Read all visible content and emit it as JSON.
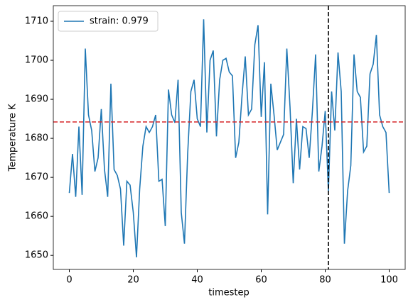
{
  "chart_data": {
    "type": "line",
    "x_label": "timestep",
    "y_label": "Temperature K",
    "x": [
      0,
      1,
      2,
      3,
      4,
      5,
      6,
      7,
      8,
      9,
      10,
      11,
      12,
      13,
      14,
      15,
      16,
      17,
      18,
      19,
      20,
      21,
      22,
      23,
      24,
      25,
      26,
      27,
      28,
      29,
      30,
      31,
      32,
      33,
      34,
      35,
      36,
      37,
      38,
      39,
      40,
      41,
      42,
      43,
      44,
      45,
      46,
      47,
      48,
      49,
      50,
      51,
      52,
      53,
      54,
      55,
      56,
      57,
      58,
      59,
      60,
      61,
      62,
      63,
      64,
      65,
      66,
      67,
      68,
      69,
      70,
      71,
      72,
      73,
      74,
      75,
      76,
      77,
      78,
      79,
      80,
      81,
      82,
      83,
      84,
      85,
      86,
      87,
      88,
      89,
      90,
      91,
      92,
      93,
      94,
      95,
      96,
      97,
      98,
      99,
      100
    ],
    "series": [
      {
        "name": "strain: 0.979",
        "color": "#1f77b4",
        "values": [
          1666,
          1676,
          1665,
          1683,
          1665.5,
          1703,
          1686,
          1682,
          1671.5,
          1675,
          1687.5,
          1672,
          1665,
          1694,
          1672,
          1670.5,
          1667,
          1652.5,
          1669,
          1668,
          1661,
          1649.5,
          1667,
          1678,
          1683,
          1681.5,
          1683,
          1686,
          1669,
          1669.5,
          1657.5,
          1692.5,
          1686,
          1684,
          1695,
          1661,
          1653,
          1676,
          1692,
          1695,
          1685,
          1683,
          1710.5,
          1681.5,
          1700,
          1702.5,
          1680.5,
          1695,
          1700,
          1700.5,
          1697,
          1696,
          1675,
          1679,
          1691,
          1701,
          1686,
          1687.5,
          1704,
          1709,
          1685.5,
          1699.5,
          1660.5,
          1694,
          1686,
          1677,
          1679,
          1681,
          1703,
          1688,
          1668.5,
          1685,
          1672,
          1683,
          1682.5,
          1675,
          1687,
          1701.5,
          1671.5,
          1678,
          1687,
          1666.5,
          1692,
          1682,
          1702,
          1692,
          1653,
          1666.5,
          1673,
          1701.5,
          1692,
          1690.5,
          1676.5,
          1678,
          1696.5,
          1699,
          1706.5,
          1686,
          1683,
          1681.5,
          1666
        ]
      }
    ],
    "hline": {
      "value": 1684.2,
      "color": "#d62728",
      "style": "dashed"
    },
    "vline": {
      "value": 81,
      "color": "#000000",
      "style": "dashed"
    },
    "xlim": [
      -5,
      105
    ],
    "ylim": [
      1646.4,
      1714
    ],
    "xticks": [
      0,
      20,
      40,
      60,
      80,
      100
    ],
    "yticks": [
      1650,
      1660,
      1670,
      1680,
      1690,
      1700,
      1710
    ],
    "grid": false,
    "legend": "upper left"
  }
}
